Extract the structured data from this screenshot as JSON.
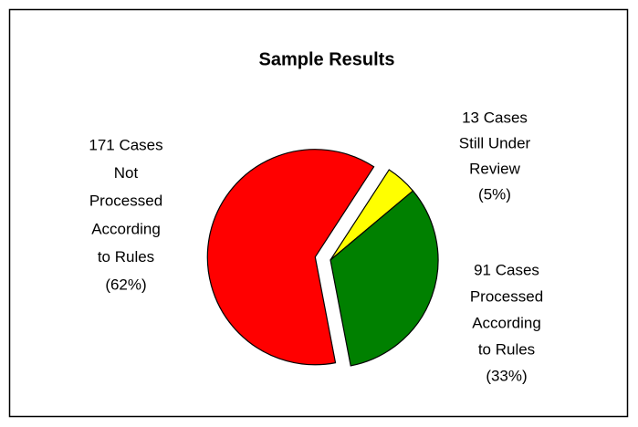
{
  "chart_data": {
    "type": "pie",
    "title": "Sample Results",
    "labels": [
      [
        "13 Cases",
        "Still Under",
        "Review",
        "(5%)"
      ],
      [
        "91 Cases",
        "Processed",
        "According",
        "to Rules",
        "(33%)"
      ],
      [
        "171 Cases",
        "Not",
        "Processed",
        "According",
        "to Rules",
        "(62%)"
      ]
    ],
    "values": [
      13,
      91,
      171
    ],
    "colors": [
      "#ffff00",
      "#008000",
      "#ff0000"
    ]
  }
}
